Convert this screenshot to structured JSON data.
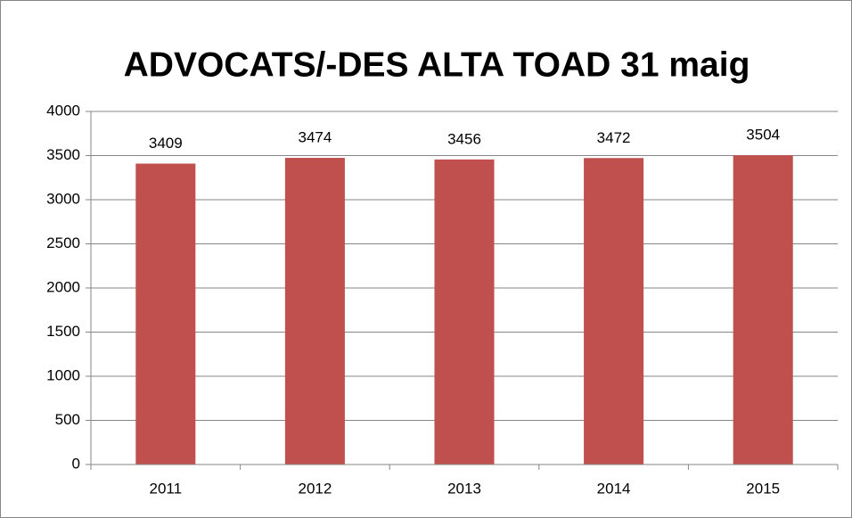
{
  "chart_data": {
    "type": "bar",
    "title": "ADVOCATS/-DES ALTA TOAD 31 maig",
    "categories": [
      "2011",
      "2012",
      "2013",
      "2014",
      "2015"
    ],
    "values": [
      3409,
      3474,
      3456,
      3472,
      3504
    ],
    "color": "#c0504d",
    "ylim": [
      0,
      4000
    ],
    "yticks": [
      0,
      500,
      1000,
      1500,
      2000,
      2500,
      3000,
      3500,
      4000
    ],
    "grid": true,
    "data_labels": true
  }
}
